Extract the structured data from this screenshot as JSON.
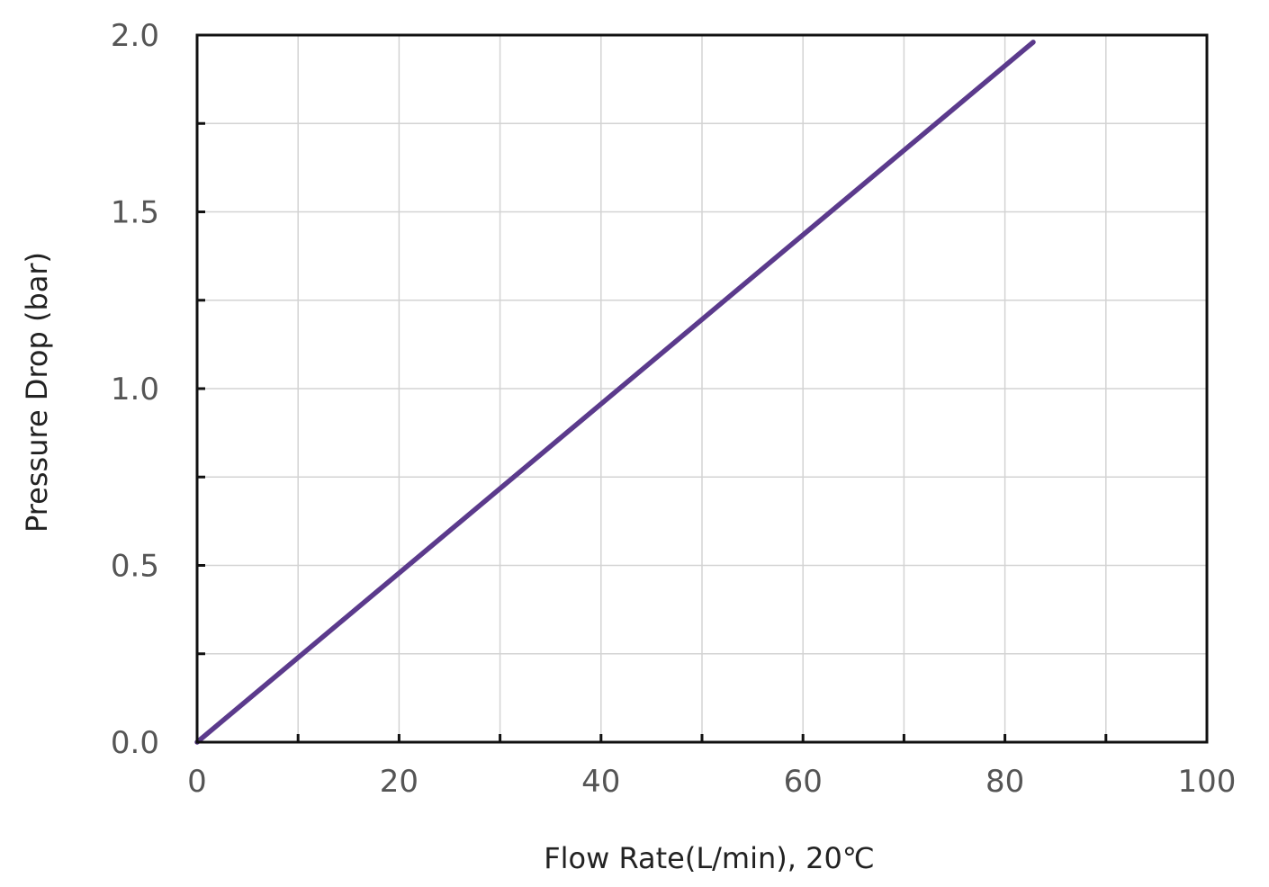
{
  "chart_data": {
    "type": "line",
    "xlabel": "Flow Rate(L/min), 20℃",
    "ylabel": "Pressure Drop (bar)",
    "xlim": [
      0,
      100
    ],
    "ylim": [
      0,
      2.0
    ],
    "x_ticks": [
      0,
      20,
      40,
      60,
      80,
      100
    ],
    "x_tick_labels": [
      "0",
      "20",
      "40",
      "60",
      "80",
      "100"
    ],
    "x_minor_ticks": [
      10,
      30,
      50,
      70,
      90
    ],
    "y_ticks": [
      0,
      0.5,
      1.0,
      1.5,
      2.0
    ],
    "y_tick_labels": [
      "0.0",
      "0.5",
      "1.0",
      "1.5",
      "2.0"
    ],
    "y_minor_ticks": [
      0.25,
      0.75,
      1.25,
      1.75
    ],
    "grid": true,
    "series": [
      {
        "color": "#5b3a8c",
        "x": [
          0,
          82.8
        ],
        "y": [
          0,
          1.98
        ]
      }
    ]
  }
}
